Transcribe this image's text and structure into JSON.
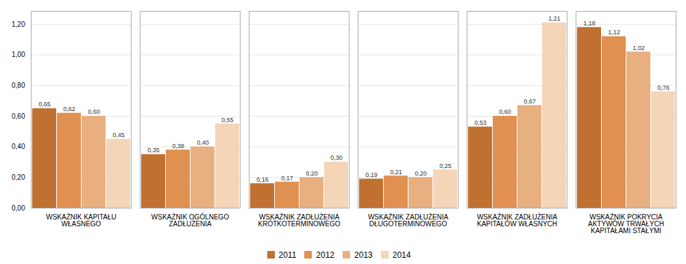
{
  "chart_data": {
    "type": "bar",
    "categories": [
      "WSKAŹNIK KAPITAŁU\nWŁASNEGO",
      "WSKAŹNIK OGÓLNEGO\nZADŁUŻENIA",
      "WSKAŹNIK ZADŁUŻENIA\nKRÓTKOTERMINOWEGO",
      "WSKAŹNIK ZADŁUŻENIA\nDŁUGOTERMINOWEGO",
      "WSKAŹNIK ZADŁUŻENIA\nKAPITAŁÓW WŁASNYCH",
      "WSKAŹNIK POKRYCIA\nAKTYWÓW TRWAŁYCH\nKAPITAŁAMI STAŁYMI"
    ],
    "series": [
      {
        "name": "2011",
        "color": "#C07030",
        "values": [
          0.65,
          0.35,
          0.16,
          0.19,
          0.53,
          1.18
        ],
        "value_labels": [
          "0,65",
          "0,35",
          "0,16",
          "0,19",
          "0,53",
          "1,18"
        ]
      },
      {
        "name": "2012",
        "color": "#E09050",
        "values": [
          0.62,
          0.38,
          0.17,
          0.21,
          0.6,
          1.12
        ],
        "value_labels": [
          "0,62",
          "0,38",
          "0,17",
          "0,21",
          "0,60",
          "1,12"
        ]
      },
      {
        "name": "2013",
        "color": "#E8B080",
        "values": [
          0.6,
          0.4,
          0.2,
          0.2,
          0.67,
          1.02
        ],
        "value_labels": [
          "0,60",
          "0,40",
          "0,20",
          "0,20",
          "0,67",
          "1,02"
        ]
      },
      {
        "name": "2014",
        "color": "#F5D5B8",
        "values": [
          0.45,
          0.55,
          0.3,
          0.25,
          1.21,
          0.76
        ],
        "value_labels": [
          "0,45",
          "0,55",
          "0,30",
          "0,25",
          "1,21",
          "0,76"
        ]
      }
    ],
    "ylim": [
      0,
      1.285
    ],
    "yticks": [
      {
        "value": 0,
        "label": "0,00"
      },
      {
        "value": 0.2,
        "label": "0,20"
      },
      {
        "value": 0.4,
        "label": "0,40"
      },
      {
        "value": 0.6,
        "label": "0,60"
      },
      {
        "value": 0.8,
        "label": "0,80"
      },
      {
        "value": 1.0,
        "label": "1,00"
      },
      {
        "value": 1.2,
        "label": "1,20"
      }
    ],
    "grid": true,
    "legend": "bottom",
    "data_labels": true
  }
}
